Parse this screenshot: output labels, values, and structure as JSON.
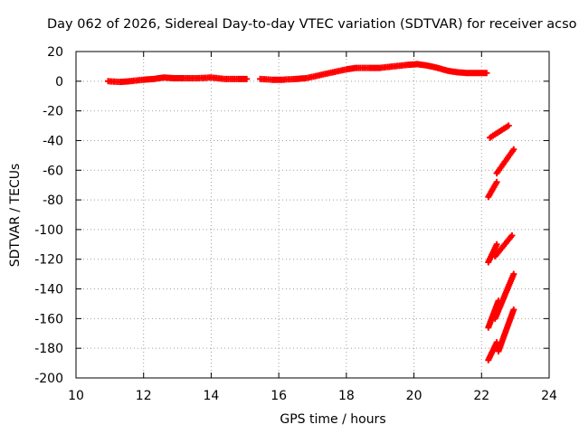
{
  "chart_data": {
    "type": "scatter",
    "title": "Day 062 of 2026, Sidereal Day-to-day VTEC variation (SDTVAR) for receiver acso",
    "xlabel": "GPS time / hours",
    "ylabel": "SDTVAR / TECUs",
    "xlim": [
      10,
      24
    ],
    "ylim": [
      -200,
      20
    ],
    "xticks": [
      10,
      12,
      14,
      16,
      18,
      20,
      22,
      24
    ],
    "yticks": [
      20,
      0,
      -20,
      -40,
      -60,
      -80,
      -100,
      -120,
      -140,
      -160,
      -180,
      -200
    ],
    "grid": true,
    "legend": "none",
    "color": "#ff0000",
    "series": [
      {
        "name": "main trace (11-15 h)",
        "x": [
          10.95,
          11.3,
          11.6,
          12.0,
          12.3,
          12.6,
          12.9,
          13.2,
          13.6,
          14.0,
          14.4,
          14.8,
          15.05
        ],
        "y": [
          0,
          -0.5,
          0,
          1,
          1.5,
          2.5,
          2,
          2,
          2,
          2.5,
          1.5,
          1.5,
          1.5
        ]
      },
      {
        "name": "main trace (15.5-22.2 h)",
        "x": [
          15.45,
          15.8,
          16.1,
          16.5,
          16.8,
          17.2,
          17.6,
          18.0,
          18.3,
          18.7,
          19.0,
          19.4,
          19.8,
          20.1,
          20.4,
          20.7,
          21.0,
          21.3,
          21.6,
          21.9,
          22.15
        ],
        "y": [
          1.5,
          1,
          1,
          1.5,
          2,
          4,
          6,
          8,
          9,
          9,
          9,
          10,
          11,
          11.5,
          10.5,
          9,
          7,
          6,
          5.5,
          5.5,
          5.5
        ]
      },
      {
        "name": "arc 1",
        "x": [
          22.25,
          22.8
        ],
        "y": [
          -38,
          -30
        ]
      },
      {
        "name": "arc 2",
        "x": [
          22.2,
          22.45
        ],
        "y": [
          -78,
          -68
        ]
      },
      {
        "name": "arc 3",
        "x": [
          22.45,
          22.95
        ],
        "y": [
          -62,
          -46
        ]
      },
      {
        "name": "arc 4",
        "x": [
          22.2,
          22.45
        ],
        "y": [
          -122,
          -110
        ]
      },
      {
        "name": "arc 5",
        "x": [
          22.4,
          22.9
        ],
        "y": [
          -118,
          -104
        ]
      },
      {
        "name": "arc 6",
        "x": [
          22.2,
          22.5
        ],
        "y": [
          -166,
          -148
        ]
      },
      {
        "name": "arc 7",
        "x": [
          22.4,
          22.95
        ],
        "y": [
          -160,
          -130
        ]
      },
      {
        "name": "arc 8",
        "x": [
          22.2,
          22.45
        ],
        "y": [
          -188,
          -176
        ]
      },
      {
        "name": "arc 9",
        "x": [
          22.5,
          22.95
        ],
        "y": [
          -182,
          -154
        ]
      }
    ]
  }
}
